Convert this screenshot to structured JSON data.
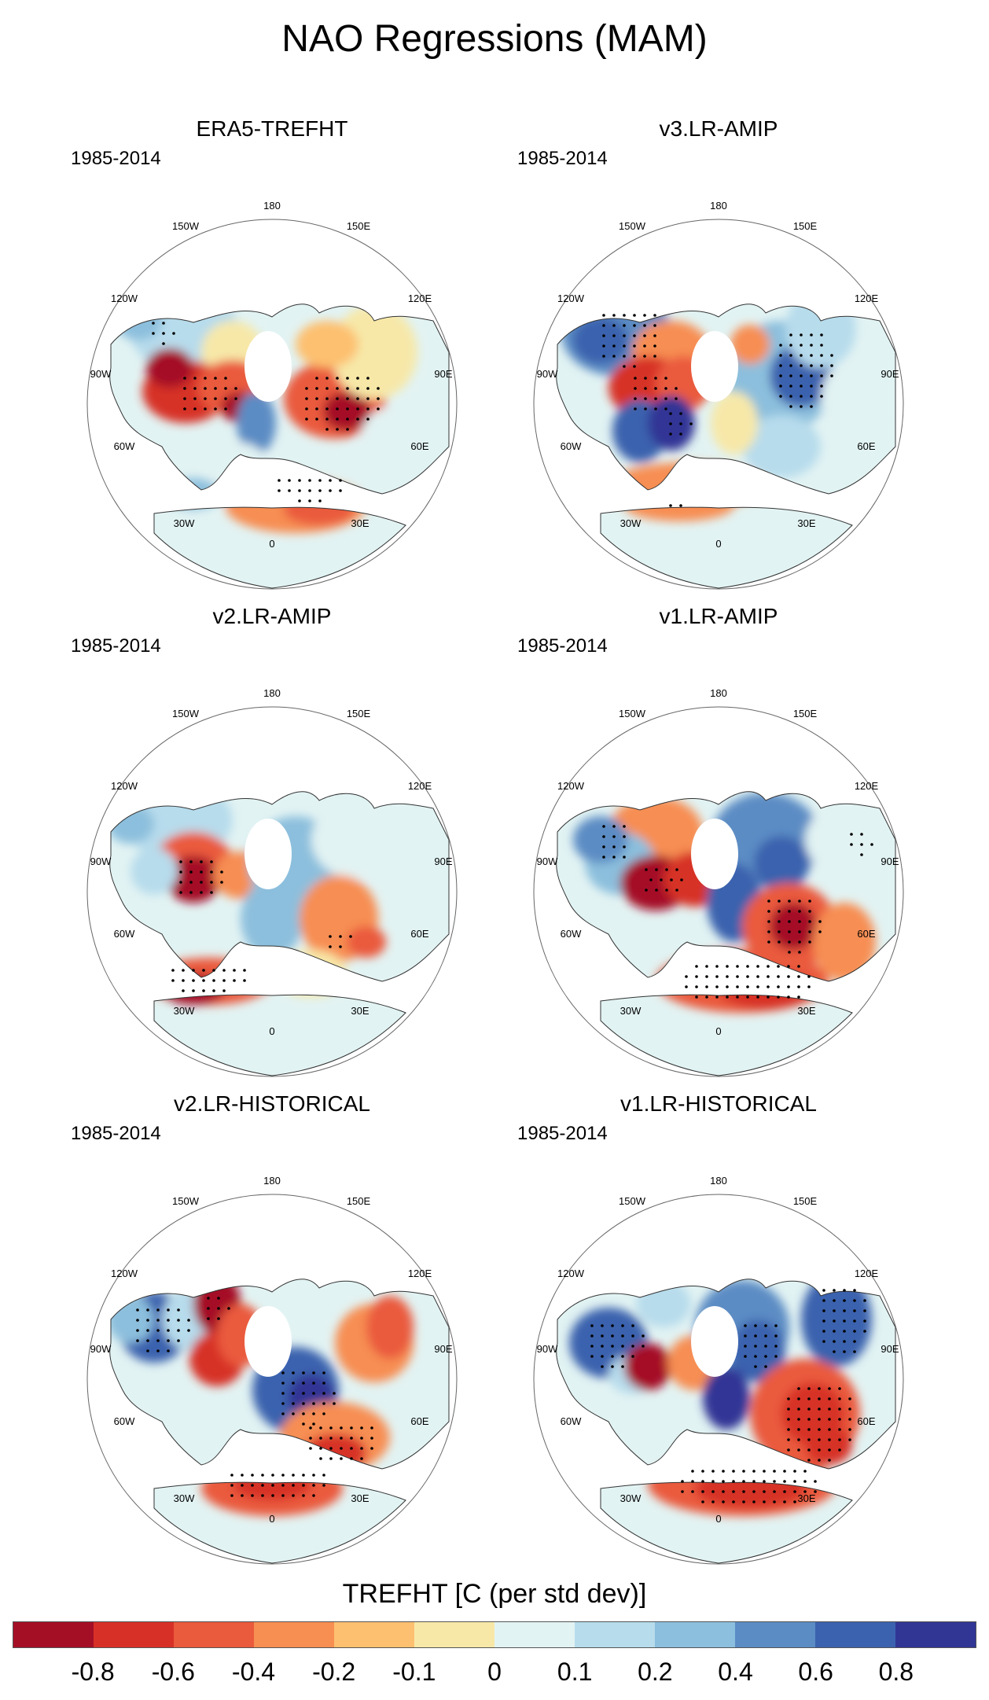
{
  "title": "NAO Regressions (MAM)",
  "period": "1985-2014",
  "longitude_labels": {
    "top": "180",
    "upper_left": "150W",
    "upper_right": "150E",
    "mid_upper_left": "120W",
    "mid_upper_right": "120E",
    "left": "90W",
    "right": "90E",
    "mid_lower_left": "60W",
    "mid_lower_right": "60E",
    "lower_left": "30W",
    "lower_right": "30E",
    "bottom": "0"
  },
  "panels": [
    {
      "name": "ERA5-TREFHT"
    },
    {
      "name": "v3.LR-AMIP"
    },
    {
      "name": "v2.LR-AMIP"
    },
    {
      "name": "v1.LR-AMIP"
    },
    {
      "name": "v2.LR-HISTORICAL"
    },
    {
      "name": "v1.LR-HISTORICAL"
    }
  ],
  "colorbar": {
    "title": "TREFHT [C (per std dev)]",
    "labels": [
      "-0.8",
      "-0.6",
      "-0.4",
      "-0.2",
      "-0.1",
      "0",
      "0.1",
      "0.2",
      "0.4",
      "0.6",
      "0.8"
    ],
    "colors": [
      "#a50f26",
      "#d73027",
      "#ea5a3c",
      "#f78e52",
      "#fdc070",
      "#f7e8a8",
      "#e2f3f3",
      "#b7dcec",
      "#8cbfdd",
      "#5b8cc4",
      "#3b62ae",
      "#313695"
    ]
  }
}
